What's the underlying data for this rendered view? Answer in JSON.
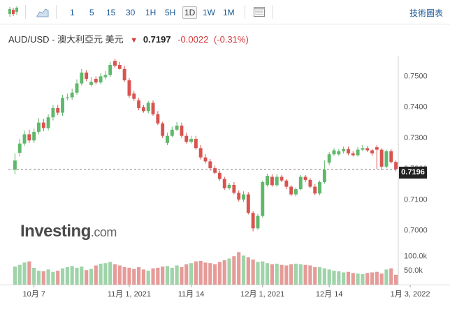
{
  "toolbar": {
    "timeframes": [
      "1",
      "5",
      "15",
      "30",
      "1H",
      "5H",
      "1D",
      "1W",
      "1M"
    ],
    "active_timeframe": "1D",
    "tech_chart_link": "技術圖表",
    "icons": [
      "candlestick-icon",
      "area-chart-icon",
      "table-view-icon"
    ]
  },
  "header": {
    "pair_title": "AUD/USD - 澳大利亞元 美元",
    "direction_glyph": "🡇",
    "price": "0.7197",
    "change": "-0.0022",
    "change_pct": "(-0.31%)"
  },
  "current_price_tag": "0.7196",
  "watermark": {
    "brand": "Investing",
    "suffix": ".com"
  },
  "colors": {
    "up": "#5fb86b",
    "down": "#d9534f",
    "up_volume": "#9fd3a9",
    "down_volume": "#e69b98",
    "link": "#1a5a96"
  },
  "chart_data": {
    "type": "candlestick",
    "ylim": [
      0.6965,
      0.756
    ],
    "y_ticks": [
      "0.7500",
      "0.7400",
      "0.7300",
      "0.7200",
      "0.7100",
      "0.7000"
    ],
    "y_tick_values": [
      0.75,
      0.74,
      0.73,
      0.72,
      0.71,
      0.7
    ],
    "x_tick_labels": [
      "10月 7",
      "11月 1, 2021",
      "11月 14",
      "12月 1, 2021",
      "12月 14",
      "1月 3, 2022"
    ],
    "x_tick_indices": [
      4,
      24,
      37,
      52,
      66,
      83
    ],
    "volume_ticks": [
      "100.0k",
      "50.0k"
    ],
    "volume_tick_values": [
      100000,
      50000
    ],
    "volume_max": 125000,
    "current_price": 0.7196,
    "closes": [
      0.7225,
      0.728,
      0.731,
      0.729,
      0.7318,
      0.7348,
      0.733,
      0.7365,
      0.7395,
      0.738,
      0.7428,
      0.743,
      0.7445,
      0.7475,
      0.751,
      0.749,
      0.748,
      0.7478,
      0.7498,
      0.7502,
      0.7535,
      0.7532,
      0.7522,
      0.7485,
      0.7435,
      0.7425,
      0.7395,
      0.7385,
      0.7412,
      0.7375,
      0.7345,
      0.7305,
      0.7305,
      0.7325,
      0.7338,
      0.7305,
      0.7285,
      0.7295,
      0.7265,
      0.7235,
      0.7222,
      0.72,
      0.7185,
      0.7165,
      0.7135,
      0.7146,
      0.712,
      0.7098,
      0.7115,
      0.7055,
      0.7005,
      0.7045,
      0.7155,
      0.7175,
      0.7145,
      0.7172,
      0.716,
      0.714,
      0.7115,
      0.7132,
      0.7172,
      0.7162,
      0.714,
      0.7118,
      0.7155,
      0.7195,
      0.7245,
      0.7258,
      0.7255,
      0.7262,
      0.7248,
      0.7242,
      0.726,
      0.7265,
      0.7258,
      0.7248,
      0.726,
      0.7205,
      0.7255,
      0.722,
      0.7197
    ],
    "opens": [
      0.7195,
      0.725,
      0.728,
      0.731,
      0.729,
      0.7318,
      0.7348,
      0.733,
      0.7365,
      0.7395,
      0.738,
      0.7428,
      0.743,
      0.7445,
      0.7475,
      0.751,
      0.747,
      0.749,
      0.7478,
      0.7495,
      0.7502,
      0.7548,
      0.7535,
      0.7522,
      0.7485,
      0.7442,
      0.742,
      0.7398,
      0.7385,
      0.7412,
      0.7375,
      0.7345,
      0.7282,
      0.7305,
      0.7325,
      0.7338,
      0.7305,
      0.7285,
      0.7295,
      0.7265,
      0.7235,
      0.7222,
      0.72,
      0.7185,
      0.7165,
      0.7135,
      0.7146,
      0.712,
      0.7098,
      0.7115,
      0.7055,
      0.7005,
      0.7045,
      0.7145,
      0.7172,
      0.7145,
      0.7172,
      0.716,
      0.714,
      0.7115,
      0.7132,
      0.7172,
      0.7162,
      0.714,
      0.7118,
      0.7155,
      0.7218,
      0.7245,
      0.7245,
      0.7255,
      0.7262,
      0.7248,
      0.7242,
      0.726,
      0.7265,
      0.7258,
      0.7268,
      0.726,
      0.7205,
      0.7255,
      0.722
    ],
    "highs": [
      0.7248,
      0.7295,
      0.7322,
      0.7325,
      0.7328,
      0.7362,
      0.736,
      0.7375,
      0.7405,
      0.7405,
      0.7438,
      0.7442,
      0.7458,
      0.7488,
      0.7522,
      0.7518,
      0.7495,
      0.7498,
      0.7508,
      0.7515,
      0.7545,
      0.7555,
      0.7545,
      0.7532,
      0.7492,
      0.745,
      0.7428,
      0.7405,
      0.7418,
      0.742,
      0.7385,
      0.735,
      0.7315,
      0.7335,
      0.735,
      0.7348,
      0.7315,
      0.7305,
      0.7305,
      0.7275,
      0.7245,
      0.723,
      0.7208,
      0.7192,
      0.7172,
      0.7152,
      0.7155,
      0.7128,
      0.7125,
      0.7122,
      0.706,
      0.7052,
      0.716,
      0.7182,
      0.718,
      0.718,
      0.7178,
      0.7165,
      0.7145,
      0.7138,
      0.7178,
      0.7178,
      0.7168,
      0.7148,
      0.716,
      0.7225,
      0.7252,
      0.7265,
      0.7262,
      0.727,
      0.727,
      0.7255,
      0.7268,
      0.7275,
      0.7272,
      0.7262,
      0.7275,
      0.7265,
      0.726,
      0.7262,
      0.7225
    ],
    "lows": [
      0.718,
      0.7238,
      0.7272,
      0.7282,
      0.7282,
      0.731,
      0.732,
      0.7322,
      0.7355,
      0.7372,
      0.737,
      0.742,
      0.7422,
      0.7438,
      0.7468,
      0.7482,
      0.7465,
      0.7472,
      0.7472,
      0.7488,
      0.7495,
      0.7525,
      0.752,
      0.748,
      0.7428,
      0.7418,
      0.7388,
      0.738,
      0.7378,
      0.737,
      0.734,
      0.7298,
      0.7275,
      0.73,
      0.732,
      0.7298,
      0.728,
      0.728,
      0.726,
      0.7228,
      0.7215,
      0.7192,
      0.718,
      0.716,
      0.713,
      0.713,
      0.7115,
      0.7092,
      0.709,
      0.705,
      0.6995,
      0.7,
      0.704,
      0.714,
      0.714,
      0.714,
      0.7155,
      0.7132,
      0.711,
      0.7108,
      0.7128,
      0.7155,
      0.7135,
      0.7112,
      0.7112,
      0.715,
      0.721,
      0.724,
      0.724,
      0.7248,
      0.7242,
      0.7238,
      0.7238,
      0.7255,
      0.7252,
      0.724,
      0.7198,
      0.7195,
      0.72,
      0.7215,
      0.719
    ],
    "volumes": [
      62000,
      68000,
      76000,
      80000,
      58000,
      48000,
      46000,
      52000,
      44000,
      48000,
      56000,
      60000,
      64000,
      58000,
      62000,
      50000,
      54000,
      66000,
      72000,
      74000,
      78000,
      70000,
      66000,
      60000,
      58000,
      54000,
      60000,
      52000,
      48000,
      56000,
      58000,
      62000,
      64000,
      58000,
      66000,
      60000,
      70000,
      74000,
      80000,
      82000,
      76000,
      74000,
      70000,
      78000,
      84000,
      90000,
      98000,
      112000,
      100000,
      94000,
      86000,
      78000,
      80000,
      74000,
      70000,
      72000,
      68000,
      66000,
      70000,
      72000,
      70000,
      68000,
      66000,
      60000,
      60000,
      56000,
      52000,
      48000,
      46000,
      42000,
      44000,
      40000,
      38000,
      36000,
      40000,
      42000,
      44000,
      38000,
      52000,
      56000,
      34000
    ]
  }
}
